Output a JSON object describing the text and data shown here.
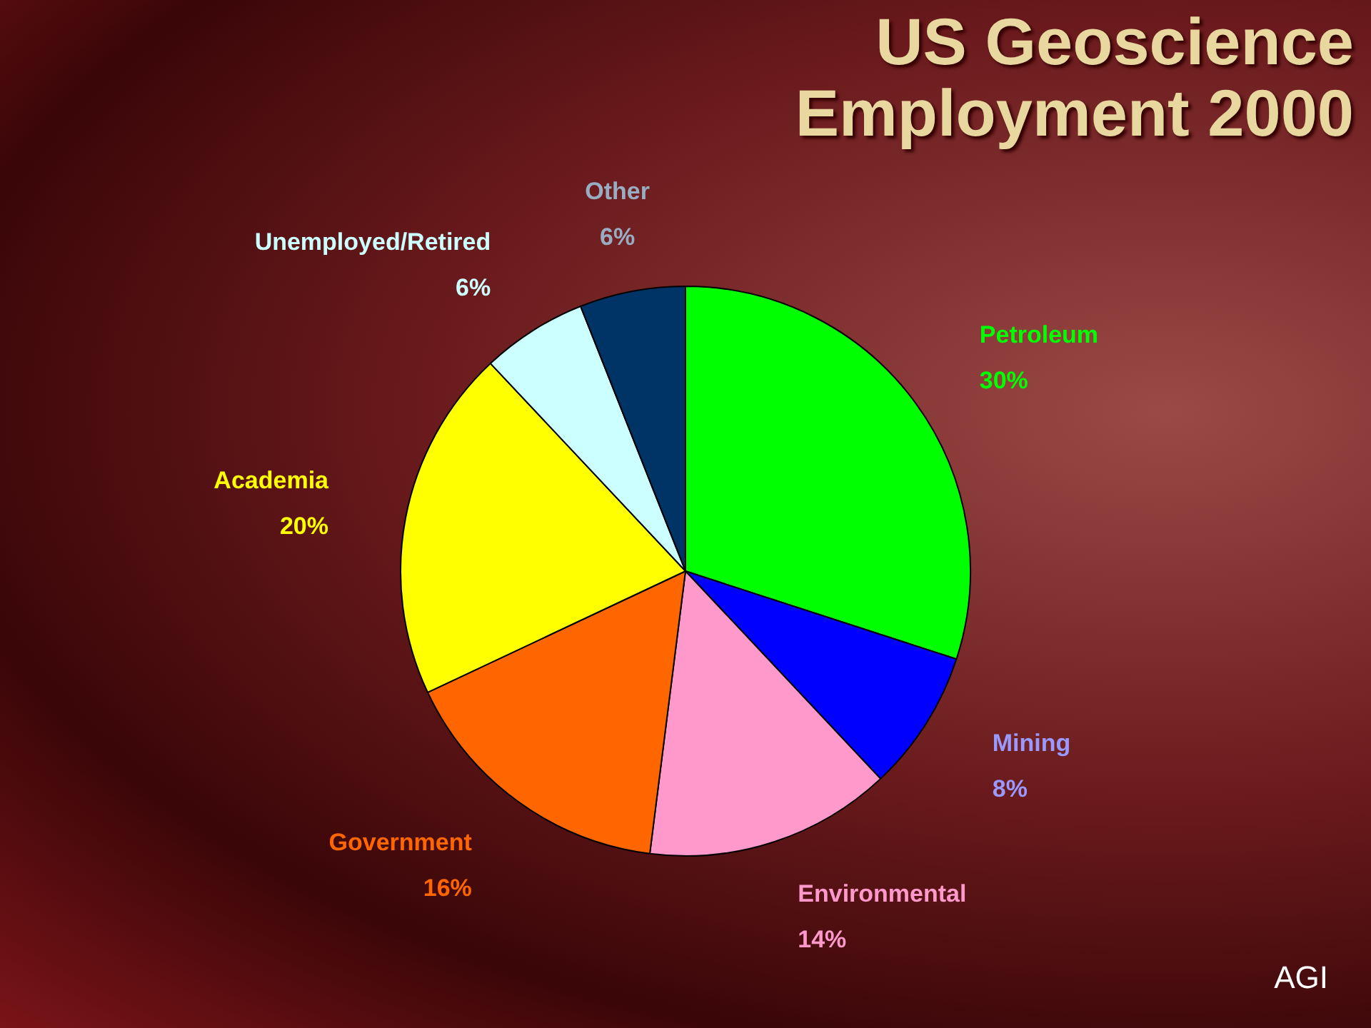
{
  "chart_data": {
    "type": "pie",
    "title": "US Geoscience Employment 2000",
    "categories": [
      "Petroleum",
      "Mining",
      "Environmental",
      "Government",
      "Academia",
      "Unemployed/Retired",
      "Other"
    ],
    "values": [
      30,
      8,
      14,
      16,
      20,
      6,
      6
    ],
    "value_labels": [
      "30%",
      "8%",
      "14%",
      "16%",
      "20%",
      "6%",
      "6%"
    ],
    "colors": [
      "#00ff00",
      "#0000ff",
      "#ff99cc",
      "#ff6600",
      "#ffff00",
      "#ccffff",
      "#003366"
    ],
    "legend": false,
    "annotations": [
      "AGI"
    ]
  }
}
